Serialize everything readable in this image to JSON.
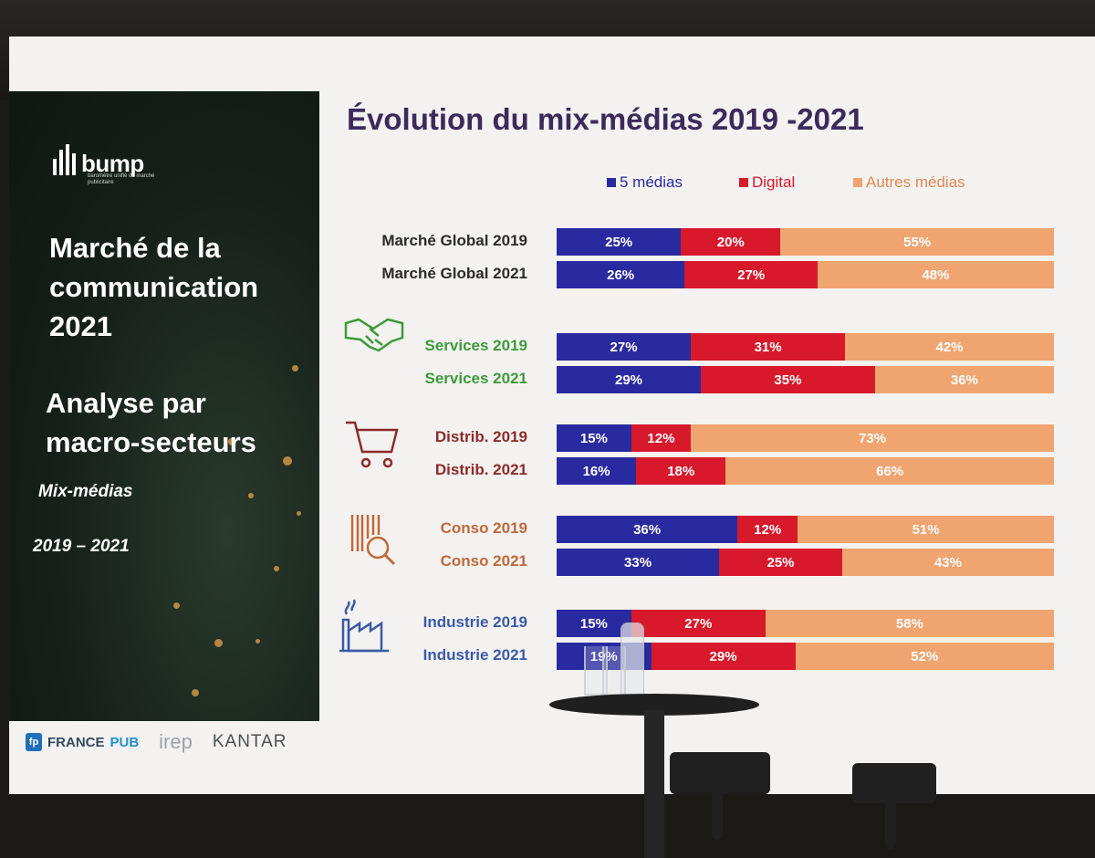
{
  "left_panel": {
    "logo_text": "bump",
    "logo_subtitle": "baromètre unifié du marché publicitaire",
    "title": "Marché de la communication 2021",
    "subtitle": "Analyse par macro-secteurs",
    "mix_label": "Mix-médias",
    "years_label": "2019 – 2021"
  },
  "footer": {
    "francepub_a": "FRANCE",
    "francepub_b": "PUB",
    "irep": "irep",
    "kantar": "KANTAR"
  },
  "chart_data": {
    "type": "bar",
    "orientation": "horizontal",
    "stacked": true,
    "title": "Évolution du mix-médias 2019 -2021",
    "legend_position": "top",
    "unit": "%",
    "series": [
      {
        "name": "5 médias",
        "color": "#2a2aa0"
      },
      {
        "name": "Digital",
        "color": "#d7192b"
      },
      {
        "name": "Autres médias",
        "color": "#f0a470"
      }
    ],
    "groups": [
      {
        "icon": "none",
        "color": "#2b2b2b",
        "rows": [
          {
            "label": "Marché Global 2019",
            "values": [
              25,
              20,
              55
            ]
          },
          {
            "label": "Marché Global 2021",
            "values": [
              26,
              27,
              48
            ]
          }
        ]
      },
      {
        "icon": "handshake-icon",
        "color": "#3d9a3a",
        "rows": [
          {
            "label": "Services 2019",
            "values": [
              27,
              31,
              42
            ]
          },
          {
            "label": "Services 2021",
            "values": [
              29,
              35,
              36
            ]
          }
        ]
      },
      {
        "icon": "shopping-cart-icon",
        "color": "#8c2a2a",
        "rows": [
          {
            "label": "Distrib. 2019",
            "values": [
              15,
              12,
              73
            ]
          },
          {
            "label": "Distrib. 2021",
            "values": [
              16,
              18,
              66
            ]
          }
        ]
      },
      {
        "icon": "barcode-magnifier-icon",
        "color": "#c0683a",
        "rows": [
          {
            "label": "Conso 2019",
            "values": [
              36,
              12,
              51
            ]
          },
          {
            "label": "Conso 2021",
            "values": [
              33,
              25,
              43
            ]
          }
        ]
      },
      {
        "icon": "factory-icon",
        "color": "#3a5aa6",
        "rows": [
          {
            "label": "Industrie 2019",
            "values": [
              15,
              27,
              58
            ]
          },
          {
            "label": "Industrie 2021",
            "values": [
              19,
              29,
              52
            ]
          }
        ]
      }
    ]
  }
}
